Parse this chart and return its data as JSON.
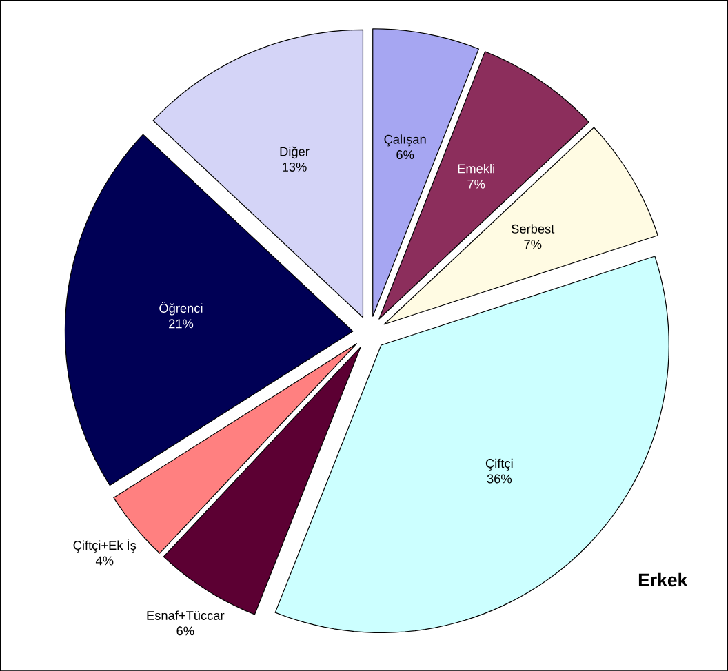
{
  "chart_data": {
    "type": "pie",
    "title": "Erkek",
    "categories": [
      "Çalışan",
      "Emekli",
      "Serbest",
      "Çiftçi",
      "Esnaf+Tüccar",
      "Çiftçi+Ek İş",
      "Öğrenci",
      "Diğer"
    ],
    "values": [
      6,
      7,
      7,
      36,
      6,
      4,
      21,
      13
    ],
    "value_labels": [
      "6%",
      "7%",
      "7%",
      "36%",
      "6%",
      "4%",
      "21%",
      "13%"
    ],
    "colors": [
      "#a6a6f2",
      "#8c2e5c",
      "#fffbe3",
      "#ccffff",
      "#5c0033",
      "#ff8080",
      "#000055",
      "#d4d4f7"
    ]
  }
}
